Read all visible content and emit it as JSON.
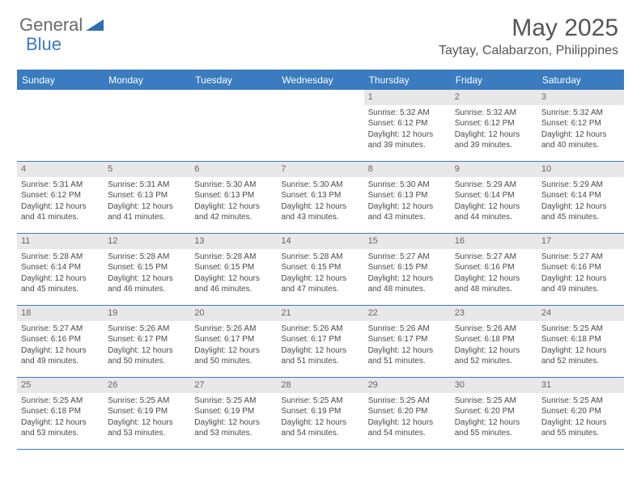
{
  "brand": {
    "part1": "General",
    "part2": "Blue",
    "logo_color": "#2f6fb0"
  },
  "title": "May 2025",
  "location": "Taytay, Calabarzon, Philippines",
  "header_bg": "#3b7bbf",
  "weekdays": [
    "Sunday",
    "Monday",
    "Tuesday",
    "Wednesday",
    "Thursday",
    "Friday",
    "Saturday"
  ],
  "weeks": [
    [
      {
        "n": "",
        "sr": "",
        "ss": "",
        "d1": "",
        "d2": ""
      },
      {
        "n": "",
        "sr": "",
        "ss": "",
        "d1": "",
        "d2": ""
      },
      {
        "n": "",
        "sr": "",
        "ss": "",
        "d1": "",
        "d2": ""
      },
      {
        "n": "",
        "sr": "",
        "ss": "",
        "d1": "",
        "d2": ""
      },
      {
        "n": "1",
        "sr": "Sunrise: 5:32 AM",
        "ss": "Sunset: 6:12 PM",
        "d1": "Daylight: 12 hours",
        "d2": "and 39 minutes."
      },
      {
        "n": "2",
        "sr": "Sunrise: 5:32 AM",
        "ss": "Sunset: 6:12 PM",
        "d1": "Daylight: 12 hours",
        "d2": "and 39 minutes."
      },
      {
        "n": "3",
        "sr": "Sunrise: 5:32 AM",
        "ss": "Sunset: 6:12 PM",
        "d1": "Daylight: 12 hours",
        "d2": "and 40 minutes."
      }
    ],
    [
      {
        "n": "4",
        "sr": "Sunrise: 5:31 AM",
        "ss": "Sunset: 6:12 PM",
        "d1": "Daylight: 12 hours",
        "d2": "and 41 minutes."
      },
      {
        "n": "5",
        "sr": "Sunrise: 5:31 AM",
        "ss": "Sunset: 6:13 PM",
        "d1": "Daylight: 12 hours",
        "d2": "and 41 minutes."
      },
      {
        "n": "6",
        "sr": "Sunrise: 5:30 AM",
        "ss": "Sunset: 6:13 PM",
        "d1": "Daylight: 12 hours",
        "d2": "and 42 minutes."
      },
      {
        "n": "7",
        "sr": "Sunrise: 5:30 AM",
        "ss": "Sunset: 6:13 PM",
        "d1": "Daylight: 12 hours",
        "d2": "and 43 minutes."
      },
      {
        "n": "8",
        "sr": "Sunrise: 5:30 AM",
        "ss": "Sunset: 6:13 PM",
        "d1": "Daylight: 12 hours",
        "d2": "and 43 minutes."
      },
      {
        "n": "9",
        "sr": "Sunrise: 5:29 AM",
        "ss": "Sunset: 6:14 PM",
        "d1": "Daylight: 12 hours",
        "d2": "and 44 minutes."
      },
      {
        "n": "10",
        "sr": "Sunrise: 5:29 AM",
        "ss": "Sunset: 6:14 PM",
        "d1": "Daylight: 12 hours",
        "d2": "and 45 minutes."
      }
    ],
    [
      {
        "n": "11",
        "sr": "Sunrise: 5:28 AM",
        "ss": "Sunset: 6:14 PM",
        "d1": "Daylight: 12 hours",
        "d2": "and 45 minutes."
      },
      {
        "n": "12",
        "sr": "Sunrise: 5:28 AM",
        "ss": "Sunset: 6:15 PM",
        "d1": "Daylight: 12 hours",
        "d2": "and 46 minutes."
      },
      {
        "n": "13",
        "sr": "Sunrise: 5:28 AM",
        "ss": "Sunset: 6:15 PM",
        "d1": "Daylight: 12 hours",
        "d2": "and 46 minutes."
      },
      {
        "n": "14",
        "sr": "Sunrise: 5:28 AM",
        "ss": "Sunset: 6:15 PM",
        "d1": "Daylight: 12 hours",
        "d2": "and 47 minutes."
      },
      {
        "n": "15",
        "sr": "Sunrise: 5:27 AM",
        "ss": "Sunset: 6:15 PM",
        "d1": "Daylight: 12 hours",
        "d2": "and 48 minutes."
      },
      {
        "n": "16",
        "sr": "Sunrise: 5:27 AM",
        "ss": "Sunset: 6:16 PM",
        "d1": "Daylight: 12 hours",
        "d2": "and 48 minutes."
      },
      {
        "n": "17",
        "sr": "Sunrise: 5:27 AM",
        "ss": "Sunset: 6:16 PM",
        "d1": "Daylight: 12 hours",
        "d2": "and 49 minutes."
      }
    ],
    [
      {
        "n": "18",
        "sr": "Sunrise: 5:27 AM",
        "ss": "Sunset: 6:16 PM",
        "d1": "Daylight: 12 hours",
        "d2": "and 49 minutes."
      },
      {
        "n": "19",
        "sr": "Sunrise: 5:26 AM",
        "ss": "Sunset: 6:17 PM",
        "d1": "Daylight: 12 hours",
        "d2": "and 50 minutes."
      },
      {
        "n": "20",
        "sr": "Sunrise: 5:26 AM",
        "ss": "Sunset: 6:17 PM",
        "d1": "Daylight: 12 hours",
        "d2": "and 50 minutes."
      },
      {
        "n": "21",
        "sr": "Sunrise: 5:26 AM",
        "ss": "Sunset: 6:17 PM",
        "d1": "Daylight: 12 hours",
        "d2": "and 51 minutes."
      },
      {
        "n": "22",
        "sr": "Sunrise: 5:26 AM",
        "ss": "Sunset: 6:17 PM",
        "d1": "Daylight: 12 hours",
        "d2": "and 51 minutes."
      },
      {
        "n": "23",
        "sr": "Sunrise: 5:26 AM",
        "ss": "Sunset: 6:18 PM",
        "d1": "Daylight: 12 hours",
        "d2": "and 52 minutes."
      },
      {
        "n": "24",
        "sr": "Sunrise: 5:25 AM",
        "ss": "Sunset: 6:18 PM",
        "d1": "Daylight: 12 hours",
        "d2": "and 52 minutes."
      }
    ],
    [
      {
        "n": "25",
        "sr": "Sunrise: 5:25 AM",
        "ss": "Sunset: 6:18 PM",
        "d1": "Daylight: 12 hours",
        "d2": "and 53 minutes."
      },
      {
        "n": "26",
        "sr": "Sunrise: 5:25 AM",
        "ss": "Sunset: 6:19 PM",
        "d1": "Daylight: 12 hours",
        "d2": "and 53 minutes."
      },
      {
        "n": "27",
        "sr": "Sunrise: 5:25 AM",
        "ss": "Sunset: 6:19 PM",
        "d1": "Daylight: 12 hours",
        "d2": "and 53 minutes."
      },
      {
        "n": "28",
        "sr": "Sunrise: 5:25 AM",
        "ss": "Sunset: 6:19 PM",
        "d1": "Daylight: 12 hours",
        "d2": "and 54 minutes."
      },
      {
        "n": "29",
        "sr": "Sunrise: 5:25 AM",
        "ss": "Sunset: 6:20 PM",
        "d1": "Daylight: 12 hours",
        "d2": "and 54 minutes."
      },
      {
        "n": "30",
        "sr": "Sunrise: 5:25 AM",
        "ss": "Sunset: 6:20 PM",
        "d1": "Daylight: 12 hours",
        "d2": "and 55 minutes."
      },
      {
        "n": "31",
        "sr": "Sunrise: 5:25 AM",
        "ss": "Sunset: 6:20 PM",
        "d1": "Daylight: 12 hours",
        "d2": "and 55 minutes."
      }
    ]
  ]
}
